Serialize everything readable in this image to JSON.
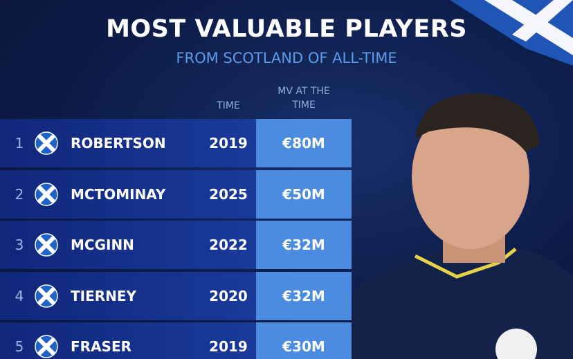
{
  "header": {
    "title": "MOST VALUABLE PLAYERS",
    "subtitle": "FROM SCOTLAND OF ALL-TIME"
  },
  "table": {
    "columns": [
      "TIME",
      "MV AT THE TIME"
    ],
    "rows": [
      [
        1,
        "ROBERTSON",
        2019,
        "€80M"
      ],
      [
        2,
        "MCTOMINAY",
        2025,
        "€50M"
      ],
      [
        3,
        "MCGINN",
        2022,
        "€32M"
      ],
      [
        4,
        "TIERNEY",
        2020,
        "€32M"
      ],
      [
        5,
        "FRASER",
        2019,
        "€30M"
      ]
    ]
  }
}
